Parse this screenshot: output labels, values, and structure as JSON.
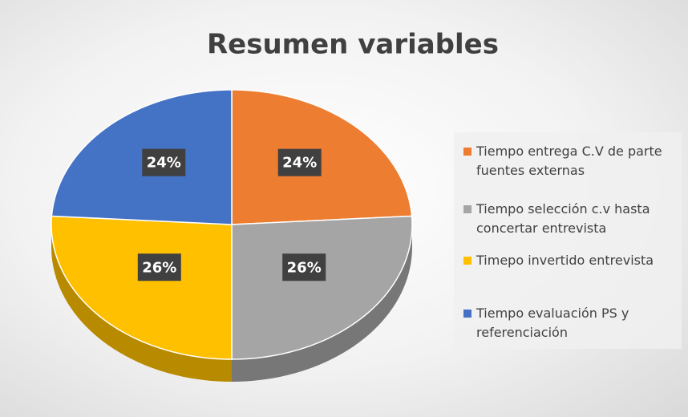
{
  "chart_data": {
    "type": "pie",
    "title": "Resumen variables",
    "categories": [
      "Tiempo entrega C.V de parte fuentes externas",
      "Tiempo selección c.v hasta concertar entrevista",
      "Timepo invertido entrevista",
      "Tiempo evaluación PS y referenciación"
    ],
    "values": [
      24,
      26,
      26,
      24
    ],
    "value_labels": [
      "24%",
      "26%",
      "26%",
      "24%"
    ],
    "colors": [
      "#ed7d31",
      "#a5a5a5",
      "#ffc000",
      "#4472c4"
    ],
    "legend": "right"
  }
}
